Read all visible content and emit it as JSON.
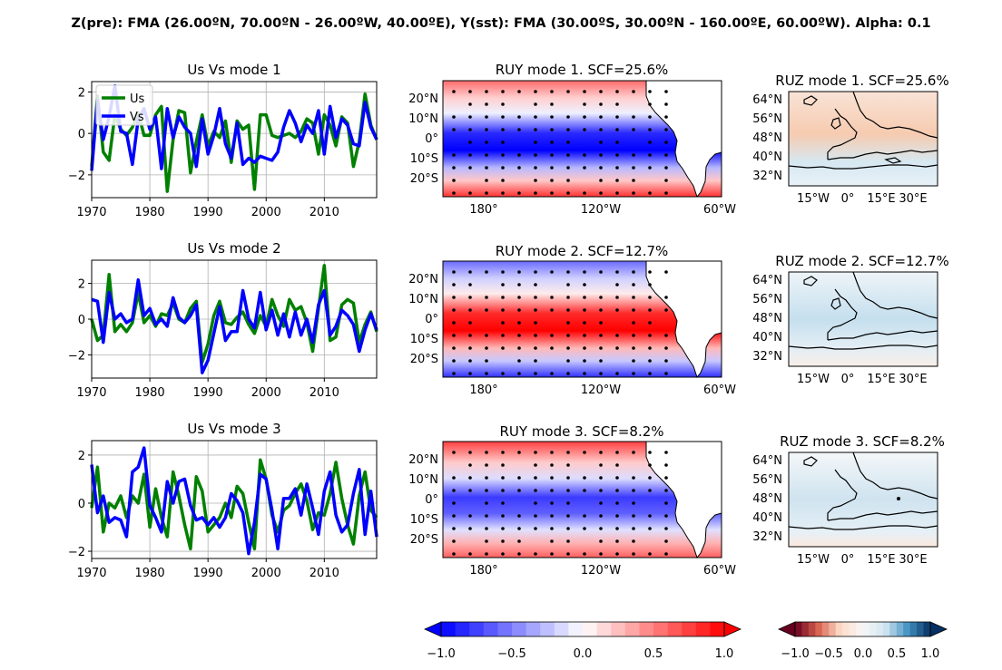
{
  "figure": {
    "suptitle": "Z(pre): FMA (26.00ºN, 70.00ºN - 26.00ºW, 40.00ºE), Y(sst): FMA (30.00ºS, 30.00ºN - 160.00ºE, 60.00ºW). Alpha: 0.1"
  },
  "colors": {
    "us": "#008000",
    "vs": "#0000ff",
    "bwr_low": "#0000ff",
    "bwr_high": "#ff0000",
    "rdbu_low": "#67001f",
    "rdbu_high": "#053061",
    "grid": "#b0b0b0"
  },
  "chart_data": [
    {
      "type": "line",
      "title": "Us Vs mode 1",
      "x": [
        1970,
        1971,
        1972,
        1973,
        1974,
        1975,
        1976,
        1977,
        1978,
        1979,
        1980,
        1981,
        1982,
        1983,
        1984,
        1985,
        1986,
        1987,
        1988,
        1989,
        1990,
        1991,
        1992,
        1993,
        1994,
        1995,
        1996,
        1997,
        1998,
        1999,
        2000,
        2001,
        2002,
        2003,
        2004,
        2005,
        2006,
        2007,
        2008,
        2009,
        2010,
        2011,
        2012,
        2013,
        2014,
        2015,
        2016,
        2017,
        2018,
        2019
      ],
      "series": [
        {
          "name": "Us",
          "values": [
            -1.6,
            1.8,
            -0.9,
            -1.3,
            0.9,
            0.2,
            -0.1,
            0.3,
            1.0,
            -0.1,
            -0.1,
            0.9,
            1.3,
            -2.8,
            -0.3,
            1.1,
            1.0,
            -1.9,
            -0.4,
            0.9,
            -0.6,
            0.1,
            -0.2,
            0.6,
            -1.4,
            0.6,
            0.2,
            0.4,
            -2.7,
            0.9,
            0.9,
            -0.1,
            -0.2,
            -0.1,
            0.0,
            -0.2,
            0.1,
            0.7,
            0.5,
            -1.0,
            0.9,
            0.4,
            -0.6,
            0.8,
            0.5,
            -1.6,
            -0.4,
            1.9,
            0.4,
            -0.3
          ]
        },
        {
          "name": "Vs",
          "values": [
            -1.8,
            1.6,
            -0.3,
            0.8,
            2.3,
            0.1,
            0.0,
            -1.5,
            0.7,
            1.2,
            0.2,
            0.8,
            -1.7,
            1.2,
            -0.2,
            0.8,
            0.3,
            0.0,
            -1.6,
            0.7,
            -1.0,
            -0.1,
            1.2,
            -0.5,
            -1.2,
            0.5,
            -1.5,
            -1.2,
            -1.4,
            -1.1,
            -1.2,
            -1.3,
            -0.9,
            0.3,
            1.1,
            0.5,
            -0.4,
            0.4,
            0.0,
            1.1,
            -1.0,
            1.3,
            -0.2,
            0.7,
            0.4,
            -0.5,
            -0.6,
            1.5,
            0.3,
            -0.3
          ]
        }
      ],
      "xlim": [
        1970,
        2019
      ],
      "ylim": [
        -3.1,
        2.5
      ],
      "xticks": [
        1970,
        1980,
        1990,
        2000,
        2010
      ],
      "yticks": [
        -2,
        0,
        2
      ],
      "legend": "upper left",
      "grid": true
    },
    {
      "type": "line",
      "title": "Us Vs mode 2",
      "x": [
        1970,
        1971,
        1972,
        1973,
        1974,
        1975,
        1976,
        1977,
        1978,
        1979,
        1980,
        1981,
        1982,
        1983,
        1984,
        1985,
        1986,
        1987,
        1988,
        1989,
        1990,
        1991,
        1992,
        1993,
        1994,
        1995,
        1996,
        1997,
        1998,
        1999,
        2000,
        2001,
        2002,
        2003,
        2004,
        2005,
        2006,
        2007,
        2008,
        2009,
        2010,
        2011,
        2012,
        2013,
        2014,
        2015,
        2016,
        2017,
        2018,
        2019
      ],
      "series": [
        {
          "name": "Us",
          "values": [
            0.0,
            -1.2,
            -0.9,
            2.5,
            -0.7,
            -0.3,
            -0.7,
            -0.2,
            1.5,
            -0.2,
            0.2,
            -0.4,
            0.3,
            0.2,
            0.9,
            0.0,
            -0.2,
            0.6,
            1.0,
            -2.4,
            -1.4,
            0.2,
            1.0,
            -0.2,
            -0.3,
            0.1,
            0.4,
            -0.3,
            -0.8,
            0.2,
            -0.4,
            1.1,
            0.2,
            -0.4,
            1.1,
            0.5,
            0.7,
            -0.2,
            -1.8,
            0.6,
            3.0,
            -1.2,
            -1.0,
            0.8,
            1.1,
            0.9,
            -1.3,
            -0.3,
            0.4,
            -0.7
          ]
        },
        {
          "name": "Vs",
          "values": [
            1.1,
            1.0,
            -1.3,
            1.5,
            0.0,
            0.3,
            -0.2,
            0.0,
            2.2,
            0.2,
            0.6,
            -0.3,
            0.0,
            -0.4,
            1.2,
            0.1,
            -0.2,
            0.2,
            0.8,
            -3.0,
            -2.3,
            -0.8,
            0.7,
            -1.2,
            -0.7,
            -0.7,
            1.6,
            0.0,
            -0.5,
            1.5,
            -0.6,
            0.5,
            -0.9,
            0.3,
            -1.0,
            0.4,
            -0.9,
            0.0,
            -1.3,
            0.8,
            1.6,
            -0.9,
            -0.4,
            0.5,
            0.2,
            -0.3,
            -1.8,
            -0.6,
            0.3,
            -0.6
          ]
        }
      ],
      "xlim": [
        1970,
        2019
      ],
      "ylim": [
        -3.3,
        3.3
      ],
      "xticks": [
        1970,
        1980,
        1990,
        2000,
        2010
      ],
      "yticks": [
        -2,
        0,
        2
      ],
      "grid": true
    },
    {
      "type": "line",
      "title": "Us Vs mode 3",
      "x": [
        1970,
        1971,
        1972,
        1973,
        1974,
        1975,
        1976,
        1977,
        1978,
        1979,
        1980,
        1981,
        1982,
        1983,
        1984,
        1985,
        1986,
        1987,
        1988,
        1989,
        1990,
        1991,
        1992,
        1993,
        1994,
        1995,
        1996,
        1997,
        1998,
        1999,
        2000,
        2001,
        2002,
        2003,
        2004,
        2005,
        2006,
        2007,
        2008,
        2009,
        2010,
        2011,
        2012,
        2013,
        2014,
        2015,
        2016,
        2017,
        2018,
        2019
      ],
      "series": [
        {
          "name": "Us",
          "values": [
            -0.2,
            1.5,
            -1.2,
            0.0,
            -0.2,
            0.3,
            -0.6,
            0.3,
            0.0,
            1.2,
            -1.0,
            0.6,
            -0.6,
            -1.4,
            1.3,
            0.3,
            -0.9,
            -1.9,
            1.1,
            0.5,
            -1.2,
            -0.9,
            -0.6,
            0.0,
            -0.6,
            0.7,
            0.4,
            -0.8,
            -1.9,
            1.8,
            1.0,
            -0.5,
            -1.2,
            -0.3,
            -0.1,
            0.4,
            0.8,
            0.1,
            -1.1,
            -0.4,
            -0.5,
            0.4,
            1.7,
            0.2,
            -0.9,
            -1.7,
            0.3,
            1.3,
            -0.3,
            -0.6
          ]
        },
        {
          "name": "Vs",
          "values": [
            1.6,
            -0.4,
            0.3,
            -0.8,
            -0.6,
            -0.7,
            -1.4,
            1.3,
            1.5,
            2.3,
            -0.1,
            -0.6,
            -1.2,
            0.9,
            0.0,
            0.9,
            1.0,
            -0.1,
            -0.7,
            -0.6,
            -0.9,
            -0.6,
            -1.0,
            -0.6,
            0.4,
            0.1,
            -0.4,
            -2.1,
            -0.8,
            1.2,
            1.0,
            -0.3,
            -1.9,
            0.2,
            0.2,
            0.6,
            -0.5,
            0.8,
            -0.2,
            -1.3,
            0.5,
            1.3,
            -0.5,
            -1.2,
            -0.9,
            0.4,
            1.4,
            -1.3,
            0.5,
            -1.4
          ]
        }
      ],
      "xlim": [
        1970,
        2019
      ],
      "ylim": [
        -2.3,
        2.6
      ],
      "xticks": [
        1970,
        1980,
        1990,
        2000,
        2010
      ],
      "yticks": [
        -2,
        0,
        2
      ],
      "grid": true
    }
  ],
  "maps": {
    "ruy": [
      {
        "title": "RUY mode 1. SCF=25.6%",
        "sign": -1
      },
      {
        "title": "RUY mode 2. SCF=12.7%",
        "sign": 1
      },
      {
        "title": "RUY mode 3. SCF=8.2%",
        "sign": -1
      }
    ],
    "ruz": [
      {
        "title": "RUZ mode 1. SCF=25.6%"
      },
      {
        "title": "RUZ mode 2. SCF=12.7%"
      },
      {
        "title": "RUZ mode 3. SCF=8.2%"
      }
    ],
    "ruy_lat_labels": [
      "20°N",
      "10°N",
      "0°",
      "10°S",
      "20°S"
    ],
    "ruy_lon_labels": [
      "180°",
      "120°W",
      "60°W"
    ],
    "ruz_lat_labels": [
      "64°N",
      "56°N",
      "48°N",
      "40°N",
      "32°N"
    ],
    "ruz_lon_labels": [
      "15°W",
      "0°",
      "15°E",
      "30°E"
    ]
  },
  "colorbars": {
    "ruy": {
      "cmap": "bwr",
      "ticks": [
        "−1.0",
        "−0.5",
        "0.0",
        "0.5",
        "1.0"
      ]
    },
    "ruz": {
      "cmap": "RdBu",
      "ticks": [
        "−1.0",
        "−0.5",
        "0.0",
        "0.5",
        "1.0"
      ]
    }
  }
}
